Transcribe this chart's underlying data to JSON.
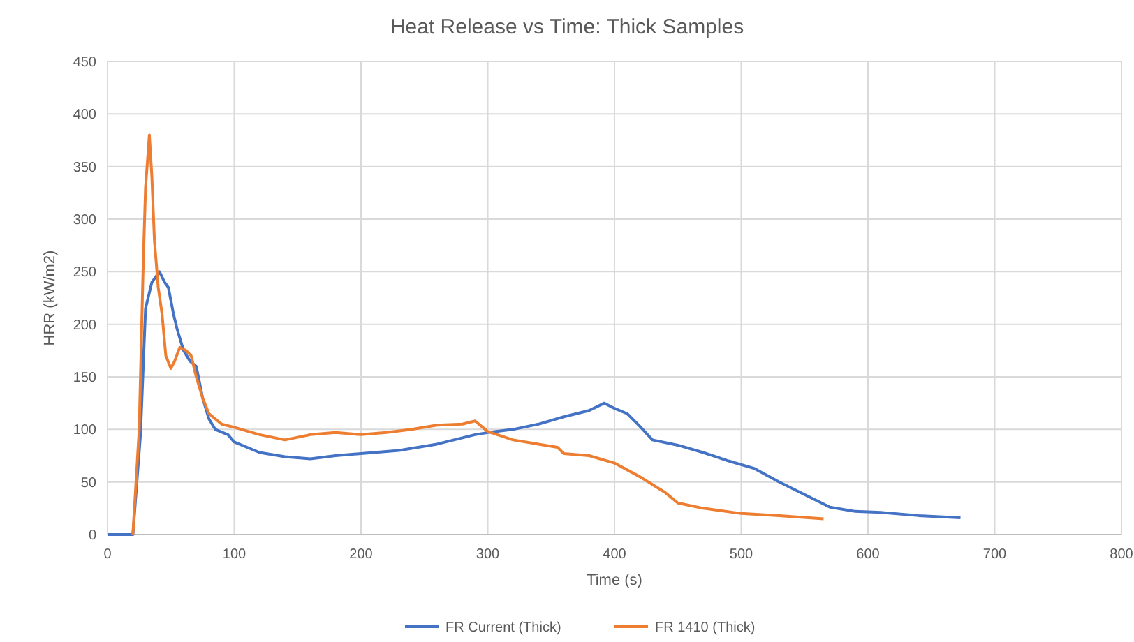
{
  "chart_data": {
    "type": "line",
    "title": "Heat Release vs Time: Thick Samples",
    "xlabel": "Time (s)",
    "ylabel": "HRR (kW/m2)",
    "xlim": [
      0,
      800
    ],
    "xticks": [
      0,
      100,
      200,
      300,
      400,
      500,
      600,
      700,
      800
    ],
    "ylim": [
      0,
      450
    ],
    "yticks": [
      0,
      50,
      100,
      150,
      200,
      250,
      300,
      350,
      400,
      450
    ],
    "grid": true,
    "legend": "bottom",
    "line_style": "solid",
    "marker": "none",
    "series": [
      {
        "name": "FR Current (Thick)",
        "color": "#4472c4",
        "x": [
          0,
          10,
          20,
          26,
          30,
          35,
          41,
          45,
          48,
          52,
          55,
          60,
          65,
          70,
          75,
          80,
          85,
          95,
          100,
          120,
          140,
          160,
          180,
          200,
          230,
          260,
          290,
          300,
          320,
          340,
          360,
          380,
          392,
          400,
          410,
          420,
          430,
          450,
          470,
          490,
          510,
          530,
          550,
          570,
          590,
          610,
          640,
          673
        ],
        "values": [
          0,
          0,
          0,
          95,
          215,
          240,
          250,
          240,
          235,
          210,
          195,
          175,
          165,
          160,
          130,
          110,
          100,
          95,
          88,
          78,
          74,
          72,
          75,
          77,
          80,
          86,
          95,
          97,
          100,
          105,
          112,
          118,
          125,
          120,
          115,
          103,
          90,
          85,
          78,
          70,
          63,
          50,
          38,
          26,
          22,
          21,
          18,
          16
        ]
      },
      {
        "name": "FR 1410 (Thick)",
        "color": "#ed7d31",
        "x": [
          20,
          25,
          28,
          30,
          33,
          35,
          37,
          40,
          43,
          46,
          50,
          53,
          57,
          62,
          66,
          70,
          75,
          80,
          90,
          100,
          120,
          140,
          160,
          180,
          200,
          220,
          240,
          260,
          280,
          290,
          300,
          320,
          340,
          355,
          360,
          380,
          400,
          420,
          440,
          450,
          470,
          500,
          530,
          565
        ],
        "values": [
          0,
          100,
          250,
          330,
          380,
          340,
          280,
          235,
          210,
          170,
          158,
          165,
          178,
          175,
          170,
          150,
          130,
          115,
          105,
          102,
          95,
          90,
          95,
          97,
          95,
          97,
          100,
          104,
          105,
          108,
          98,
          90,
          86,
          83,
          77,
          75,
          68,
          55,
          40,
          30,
          25,
          20,
          18,
          15
        ]
      }
    ]
  }
}
